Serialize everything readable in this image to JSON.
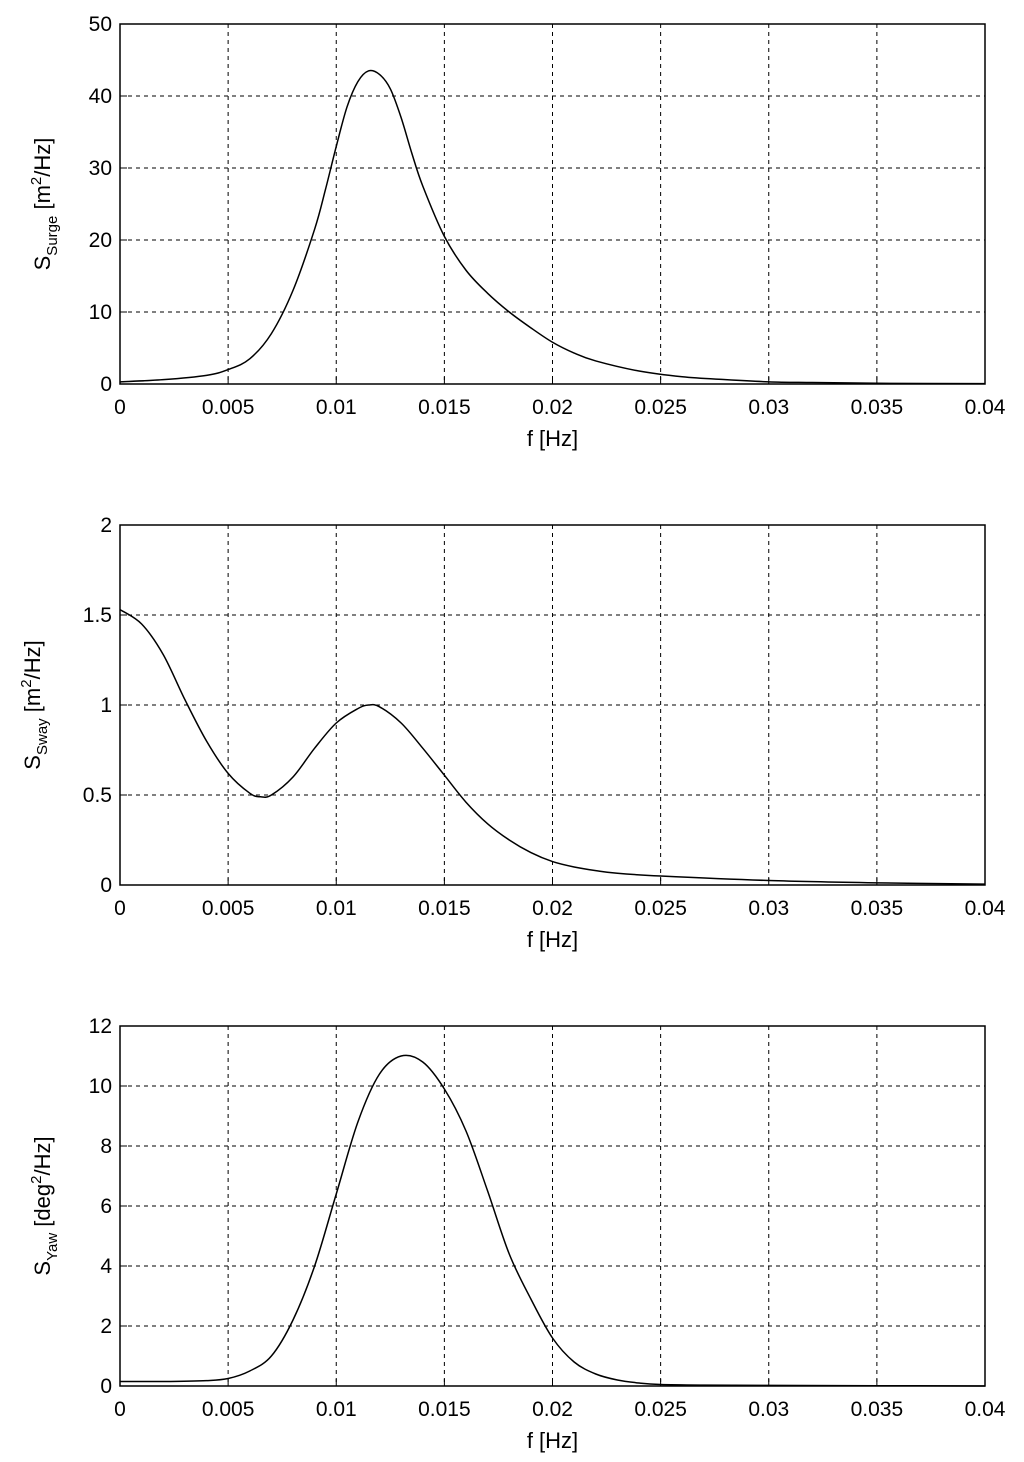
{
  "chart_data": [
    {
      "type": "line",
      "xlabel": "f [Hz]",
      "ylabel": {
        "main": "S",
        "subscript": "Surge",
        "unit_prefix": " [m",
        "unit_sup": "2",
        "unit_suffix": "/Hz]"
      },
      "xlim": [
        0,
        0.04
      ],
      "ylim": [
        0,
        50
      ],
      "xticks": [
        "0",
        "0.005",
        "0.01",
        "0.015",
        "0.02",
        "0.025",
        "0.03",
        "0.035",
        "0.04"
      ],
      "yticks": [
        "0",
        "10",
        "20",
        "30",
        "40",
        "50"
      ],
      "grid": true,
      "series": [
        {
          "x": [
            0,
            0.002,
            0.004,
            0.005,
            0.006,
            0.007,
            0.008,
            0.009,
            0.0095,
            0.01,
            0.0105,
            0.011,
            0.0115,
            0.012,
            0.0125,
            0.013,
            0.0135,
            0.014,
            0.015,
            0.016,
            0.017,
            0.018,
            0.019,
            0.02,
            0.021,
            0.022,
            0.024,
            0.026,
            0.028,
            0.03,
            0.032,
            0.035,
            0.04
          ],
          "y": [
            0.3,
            0.6,
            1.2,
            2.0,
            3.5,
            7.0,
            13.0,
            21.5,
            27.0,
            33.0,
            38.5,
            42.0,
            43.5,
            43.0,
            41.0,
            37.0,
            32.0,
            27.5,
            20.5,
            15.8,
            12.6,
            10.0,
            7.8,
            5.8,
            4.3,
            3.2,
            1.8,
            1.0,
            0.6,
            0.3,
            0.2,
            0.1,
            0.05
          ]
        }
      ]
    },
    {
      "type": "line",
      "xlabel": "f [Hz]",
      "ylabel": {
        "main": "S",
        "subscript": "Sway",
        "unit_prefix": " [m",
        "unit_sup": "2",
        "unit_suffix": "/Hz]"
      },
      "xlim": [
        0,
        0.04
      ],
      "ylim": [
        0,
        2
      ],
      "xticks": [
        "0",
        "0.005",
        "0.01",
        "0.015",
        "0.02",
        "0.025",
        "0.03",
        "0.035",
        "0.04"
      ],
      "yticks": [
        "0",
        "0.5",
        "1",
        "1.5",
        "2"
      ],
      "grid": true,
      "series": [
        {
          "x": [
            0,
            0.001,
            0.002,
            0.003,
            0.004,
            0.005,
            0.006,
            0.0065,
            0.007,
            0.008,
            0.009,
            0.01,
            0.011,
            0.0115,
            0.012,
            0.013,
            0.014,
            0.015,
            0.016,
            0.017,
            0.018,
            0.019,
            0.02,
            0.021,
            0.022,
            0.023,
            0.025,
            0.03,
            0.035,
            0.04
          ],
          "y": [
            1.53,
            1.45,
            1.28,
            1.03,
            0.8,
            0.62,
            0.51,
            0.49,
            0.5,
            0.6,
            0.76,
            0.9,
            0.98,
            1.0,
            0.99,
            0.9,
            0.76,
            0.61,
            0.46,
            0.34,
            0.25,
            0.18,
            0.13,
            0.1,
            0.08,
            0.065,
            0.05,
            0.025,
            0.012,
            0.005
          ]
        }
      ]
    },
    {
      "type": "line",
      "xlabel": "f [Hz]",
      "ylabel": {
        "main": "S",
        "subscript": "Yaw",
        "unit_prefix": " [deg",
        "unit_sup": "2",
        "unit_suffix": "/Hz]"
      },
      "xlim": [
        0,
        0.04
      ],
      "ylim": [
        0,
        12
      ],
      "xticks": [
        "0",
        "0.005",
        "0.01",
        "0.015",
        "0.02",
        "0.025",
        "0.03",
        "0.035",
        "0.04"
      ],
      "yticks": [
        "0",
        "2",
        "4",
        "6",
        "8",
        "10",
        "12"
      ],
      "grid": true,
      "series": [
        {
          "x": [
            0,
            0.002,
            0.004,
            0.005,
            0.006,
            0.007,
            0.008,
            0.009,
            0.01,
            0.011,
            0.012,
            0.013,
            0.014,
            0.015,
            0.016,
            0.017,
            0.018,
            0.019,
            0.02,
            0.021,
            0.022,
            0.023,
            0.024,
            0.025,
            0.027,
            0.03,
            0.035,
            0.04
          ],
          "y": [
            0.15,
            0.15,
            0.18,
            0.25,
            0.5,
            1.0,
            2.2,
            4.0,
            6.4,
            8.8,
            10.4,
            11.0,
            10.8,
            9.9,
            8.5,
            6.5,
            4.4,
            2.9,
            1.6,
            0.8,
            0.4,
            0.2,
            0.1,
            0.05,
            0.03,
            0.02,
            0.01,
            0.0
          ]
        }
      ]
    }
  ]
}
